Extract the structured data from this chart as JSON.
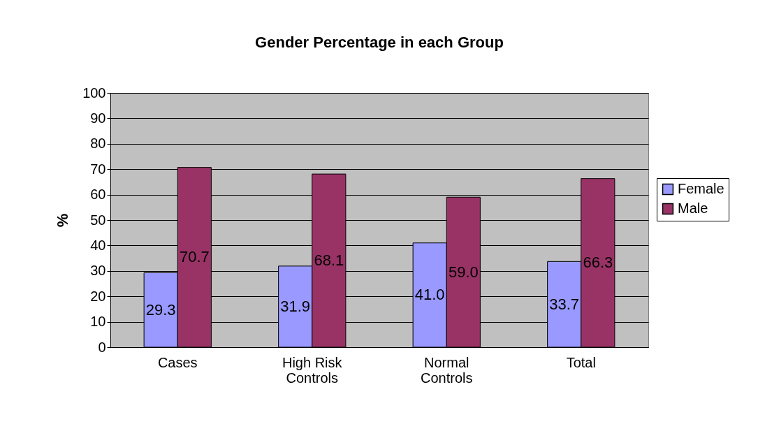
{
  "chart_data": {
    "type": "bar",
    "title": "Gender Percentage in each Group",
    "ylabel": "%",
    "categories": [
      "Cases",
      "High Risk Controls",
      "Normal Controls",
      "Total"
    ],
    "series": [
      {
        "name": "Female",
        "color": "#9999ff",
        "values": [
          29.3,
          31.9,
          41.0,
          33.7
        ],
        "value_labels": [
          "29.3",
          "31.9",
          "41.0",
          "33.7"
        ]
      },
      {
        "name": "Male",
        "color": "#993366",
        "values": [
          70.7,
          68.1,
          59.0,
          66.3
        ],
        "value_labels": [
          "70.7",
          "68.1",
          "59.0",
          "66.3"
        ]
      }
    ],
    "ylim": [
      0,
      100
    ],
    "yticks": [
      0,
      10,
      20,
      30,
      40,
      50,
      60,
      70,
      80,
      90,
      100
    ],
    "grid": "y",
    "legend": "right"
  }
}
